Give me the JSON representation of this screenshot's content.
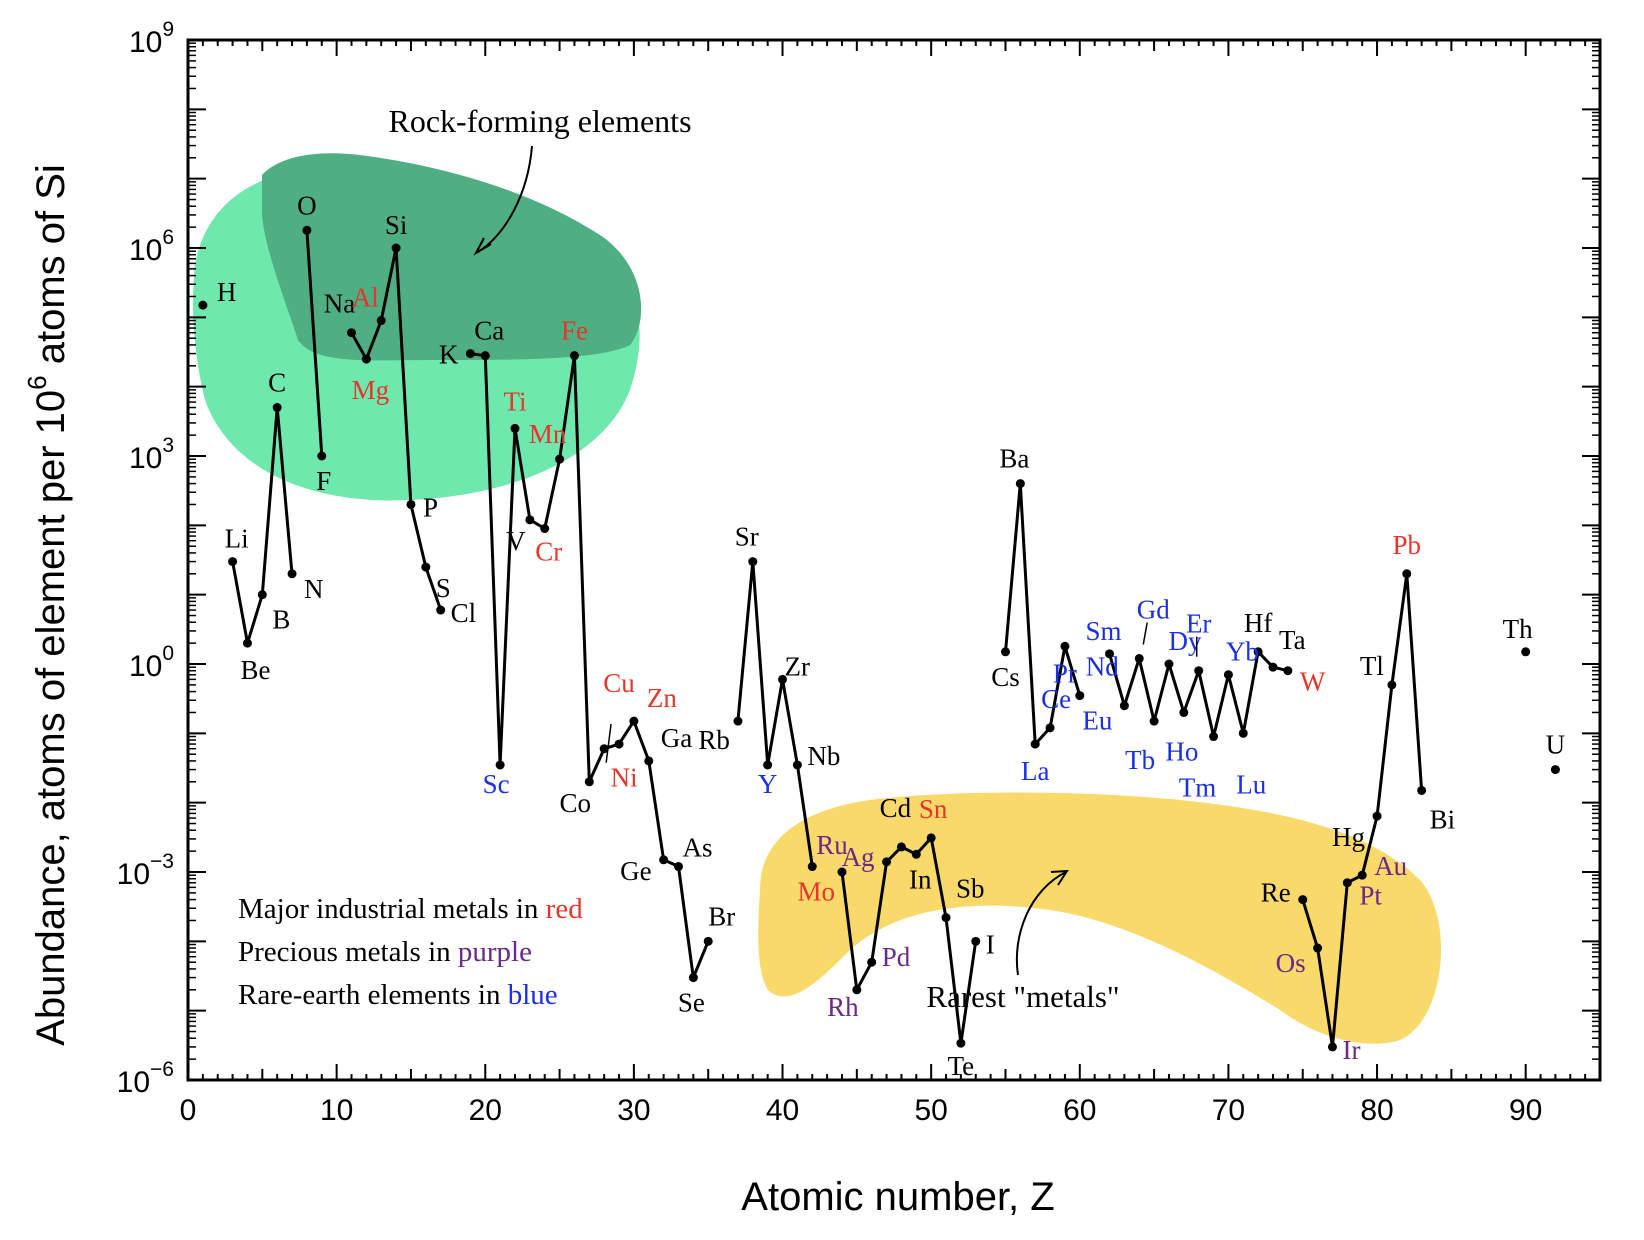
{
  "chart_data": {
    "type": "line",
    "title": "",
    "xlabel": "Atomic number, Z",
    "ylabel_parts": [
      "Abundance, atoms of element per 10",
      "6",
      " atoms of Si"
    ],
    "y_scale": "log",
    "xlim": [
      0,
      95
    ],
    "ylim": [
      1e-06,
      1000000000.0
    ],
    "x_ticks": [
      0,
      10,
      20,
      30,
      40,
      50,
      60,
      70,
      80,
      90
    ],
    "y_ticks": [
      {
        "value": 1e-06,
        "base": "10",
        "exp": "−6"
      },
      {
        "value": 0.001,
        "base": "10",
        "exp": "−3"
      },
      {
        "value": 1.0,
        "base": "10",
        "exp": "0"
      },
      {
        "value": 1000.0,
        "base": "10",
        "exp": "3"
      },
      {
        "value": 1000000.0,
        "base": "10",
        "exp": "6"
      },
      {
        "value": 1000000000.0,
        "base": "10",
        "exp": "9"
      }
    ],
    "colors": {
      "black": "#000000",
      "red": "#e8352b",
      "purple": "#6a2a87",
      "blue": "#1a2fe6",
      "rock_light": "#6ee8ad",
      "rock_dark": "#4fae82",
      "rare_region": "#f8d96a"
    },
    "segments": [
      [
        [
          3,
          30
        ],
        [
          4,
          2
        ],
        [
          5,
          10
        ],
        [
          6,
          5000
        ],
        [
          7,
          20
        ]
      ],
      [
        [
          8,
          1800000
        ],
        [
          9,
          1000
        ]
      ],
      [
        [
          11,
          60000
        ],
        [
          12,
          25000
        ],
        [
          13,
          90000
        ],
        [
          14,
          1000000
        ],
        [
          15,
          200
        ],
        [
          16,
          25
        ],
        [
          17,
          6
        ]
      ],
      [
        [
          19,
          30000
        ],
        [
          20,
          28000
        ],
        [
          21,
          0.035
        ],
        [
          22,
          2500
        ],
        [
          23,
          120
        ],
        [
          24,
          90
        ],
        [
          25,
          900
        ],
        [
          26,
          28000
        ],
        [
          27,
          0.02
        ],
        [
          28,
          0.06
        ],
        [
          29,
          0.07
        ],
        [
          30,
          0.15
        ],
        [
          31,
          0.04
        ],
        [
          32,
          0.0015
        ],
        [
          33,
          0.0012
        ],
        [
          34,
          3e-05
        ],
        [
          35,
          0.0001
        ]
      ],
      [
        [
          37,
          0.15
        ],
        [
          38,
          30
        ],
        [
          39,
          0.035
        ],
        [
          40,
          0.6
        ],
        [
          41,
          0.035
        ],
        [
          42,
          0.0012
        ]
      ],
      [
        [
          44,
          0.001
        ],
        [
          45,
          2e-05
        ],
        [
          46,
          5e-05
        ],
        [
          47,
          0.0014
        ],
        [
          48,
          0.0023
        ],
        [
          49,
          0.0018
        ],
        [
          50,
          0.0031
        ],
        [
          51,
          0.00022
        ],
        [
          52,
          3.4e-06
        ],
        [
          53,
          0.0001
        ]
      ],
      [
        [
          55,
          1.5
        ],
        [
          56,
          400
        ],
        [
          57,
          0.07
        ],
        [
          58,
          0.12
        ],
        [
          59,
          1.8
        ],
        [
          60,
          0.35
        ]
      ],
      [
        [
          62,
          1.4
        ],
        [
          63,
          0.25
        ],
        [
          64,
          1.2
        ],
        [
          65,
          0.15
        ],
        [
          66,
          1.0
        ],
        [
          67,
          0.2
        ],
        [
          68,
          0.8
        ],
        [
          69,
          0.09
        ],
        [
          70,
          0.7
        ],
        [
          71,
          0.1
        ],
        [
          72,
          1.5
        ],
        [
          73,
          0.9
        ],
        [
          74,
          0.8
        ]
      ],
      [
        [
          75,
          0.0004
        ],
        [
          76,
          8e-05
        ],
        [
          77,
          3e-06
        ],
        [
          78,
          0.0007
        ],
        [
          79,
          0.0009
        ],
        [
          80,
          0.0064
        ],
        [
          81,
          0.5
        ],
        [
          82,
          20
        ],
        [
          83,
          0.015
        ]
      ]
    ],
    "points": [
      {
        "z": 1,
        "y": 150000,
        "label": "H",
        "color": "black"
      },
      {
        "z": 3,
        "y": 30,
        "label": "Li",
        "color": "black"
      },
      {
        "z": 4,
        "y": 2,
        "label": "Be",
        "color": "black"
      },
      {
        "z": 5,
        "y": 10,
        "label": "B",
        "color": "black"
      },
      {
        "z": 6,
        "y": 5000,
        "label": "C",
        "color": "black"
      },
      {
        "z": 7,
        "y": 20,
        "label": "N",
        "color": "black"
      },
      {
        "z": 8,
        "y": 1800000,
        "label": "O",
        "color": "black"
      },
      {
        "z": 9,
        "y": 1000,
        "label": "F",
        "color": "black"
      },
      {
        "z": 11,
        "y": 60000,
        "label": "Na",
        "color": "black"
      },
      {
        "z": 12,
        "y": 25000,
        "label": "Mg",
        "color": "red"
      },
      {
        "z": 13,
        "y": 90000,
        "label": "Al",
        "color": "red"
      },
      {
        "z": 14,
        "y": 1000000,
        "label": "Si",
        "color": "black"
      },
      {
        "z": 15,
        "y": 200,
        "label": "P",
        "color": "black"
      },
      {
        "z": 16,
        "y": 25,
        "label": "S",
        "color": "black"
      },
      {
        "z": 17,
        "y": 6,
        "label": "Cl",
        "color": "black"
      },
      {
        "z": 19,
        "y": 30000,
        "label": "K",
        "color": "black"
      },
      {
        "z": 20,
        "y": 28000,
        "label": "Ca",
        "color": "black"
      },
      {
        "z": 21,
        "y": 0.035,
        "label": "Sc",
        "color": "blue"
      },
      {
        "z": 22,
        "y": 2500,
        "label": "Ti",
        "color": "red"
      },
      {
        "z": 23,
        "y": 120,
        "label": "V",
        "color": "black"
      },
      {
        "z": 24,
        "y": 90,
        "label": "Cr",
        "color": "red"
      },
      {
        "z": 25,
        "y": 900,
        "label": "Mn",
        "color": "red"
      },
      {
        "z": 26,
        "y": 28000,
        "label": "Fe",
        "color": "red"
      },
      {
        "z": 27,
        "y": 0.02,
        "label": "Co",
        "color": "black"
      },
      {
        "z": 28,
        "y": 0.06,
        "label": "Ni",
        "color": "red"
      },
      {
        "z": 29,
        "y": 0.07,
        "label": "Cu",
        "color": "red"
      },
      {
        "z": 30,
        "y": 0.15,
        "label": "Zn",
        "color": "red"
      },
      {
        "z": 31,
        "y": 0.04,
        "label": "Ga",
        "color": "black"
      },
      {
        "z": 32,
        "y": 0.0015,
        "label": "Ge",
        "color": "black"
      },
      {
        "z": 33,
        "y": 0.0012,
        "label": "As",
        "color": "black"
      },
      {
        "z": 34,
        "y": 3e-05,
        "label": "Se",
        "color": "black"
      },
      {
        "z": 35,
        "y": 0.0001,
        "label": "Br",
        "color": "black"
      },
      {
        "z": 37,
        "y": 0.15,
        "label": "Rb",
        "color": "black"
      },
      {
        "z": 38,
        "y": 30,
        "label": "Sr",
        "color": "black"
      },
      {
        "z": 39,
        "y": 0.035,
        "label": "Y",
        "color": "blue"
      },
      {
        "z": 40,
        "y": 0.6,
        "label": "Zr",
        "color": "black"
      },
      {
        "z": 41,
        "y": 0.035,
        "label": "Nb",
        "color": "black"
      },
      {
        "z": 42,
        "y": 0.0012,
        "label": "Mo",
        "color": "red"
      },
      {
        "z": 44,
        "y": 0.001,
        "label": "Ru",
        "color": "purple"
      },
      {
        "z": 45,
        "y": 2e-05,
        "label": "Rh",
        "color": "purple"
      },
      {
        "z": 46,
        "y": 5e-05,
        "label": "Pd",
        "color": "purple"
      },
      {
        "z": 47,
        "y": 0.0014,
        "label": "Ag",
        "color": "purple"
      },
      {
        "z": 48,
        "y": 0.0023,
        "label": "Cd",
        "color": "black"
      },
      {
        "z": 49,
        "y": 0.0018,
        "label": "In",
        "color": "black"
      },
      {
        "z": 50,
        "y": 0.0031,
        "label": "Sn",
        "color": "red"
      },
      {
        "z": 51,
        "y": 0.00022,
        "label": "Sb",
        "color": "black"
      },
      {
        "z": 52,
        "y": 3.4e-06,
        "label": "Te",
        "color": "black"
      },
      {
        "z": 53,
        "y": 0.0001,
        "label": "I",
        "color": "black"
      },
      {
        "z": 55,
        "y": 1.5,
        "label": "Cs",
        "color": "black"
      },
      {
        "z": 56,
        "y": 400,
        "label": "Ba",
        "color": "black"
      },
      {
        "z": 57,
        "y": 0.07,
        "label": "La",
        "color": "blue"
      },
      {
        "z": 58,
        "y": 0.12,
        "label": "Ce",
        "color": "blue"
      },
      {
        "z": 59,
        "y": 1.8,
        "label": "Pr",
        "color": "blue"
      },
      {
        "z": 60,
        "y": 0.35,
        "label": "Nd",
        "color": "blue"
      },
      {
        "z": 62,
        "y": 1.4,
        "label": "Sm",
        "color": "blue"
      },
      {
        "z": 63,
        "y": 0.25,
        "label": "Eu",
        "color": "blue"
      },
      {
        "z": 64,
        "y": 1.2,
        "label": "Gd",
        "color": "blue"
      },
      {
        "z": 65,
        "y": 0.15,
        "label": "Tb",
        "color": "blue"
      },
      {
        "z": 66,
        "y": 1.0,
        "label": "Dy",
        "color": "blue"
      },
      {
        "z": 67,
        "y": 0.2,
        "label": "Ho",
        "color": "blue"
      },
      {
        "z": 68,
        "y": 0.8,
        "label": "Er",
        "color": "blue"
      },
      {
        "z": 69,
        "y": 0.09,
        "label": "Tm",
        "color": "blue"
      },
      {
        "z": 70,
        "y": 0.7,
        "label": "Yb",
        "color": "blue"
      },
      {
        "z": 71,
        "y": 0.1,
        "label": "Lu",
        "color": "blue"
      },
      {
        "z": 72,
        "y": 1.5,
        "label": "Hf",
        "color": "black"
      },
      {
        "z": 73,
        "y": 0.9,
        "label": "Ta",
        "color": "black"
      },
      {
        "z": 74,
        "y": 0.8,
        "label": "W",
        "color": "red"
      },
      {
        "z": 75,
        "y": 0.0004,
        "label": "Re",
        "color": "black"
      },
      {
        "z": 76,
        "y": 8e-05,
        "label": "Os",
        "color": "purple"
      },
      {
        "z": 77,
        "y": 3e-06,
        "label": "Ir",
        "color": "purple"
      },
      {
        "z": 78,
        "y": 0.0007,
        "label": "Pt",
        "color": "purple"
      },
      {
        "z": 79,
        "y": 0.0009,
        "label": "Au",
        "color": "purple"
      },
      {
        "z": 80,
        "y": 0.0064,
        "label": "Hg",
        "color": "black"
      },
      {
        "z": 81,
        "y": 0.5,
        "label": "Tl",
        "color": "black"
      },
      {
        "z": 82,
        "y": 20,
        "label": "Pb",
        "color": "red"
      },
      {
        "z": 83,
        "y": 0.015,
        "label": "Bi",
        "color": "black"
      },
      {
        "z": 90,
        "y": 1.5,
        "label": "Th",
        "color": "black"
      },
      {
        "z": 92,
        "y": 0.03,
        "label": "U",
        "color": "black"
      }
    ],
    "annotations": {
      "rock_forming": "Rock-forming elements",
      "rarest_metals": "Rarest \"metals\""
    },
    "notes": [
      {
        "prefix": "Major industrial metals in ",
        "word": "red",
        "color": "red"
      },
      {
        "prefix": "Precious metals in ",
        "word": "purple",
        "color": "purple"
      },
      {
        "prefix": "Rare-earth elements in ",
        "word": "blue",
        "color": "blue"
      }
    ]
  }
}
